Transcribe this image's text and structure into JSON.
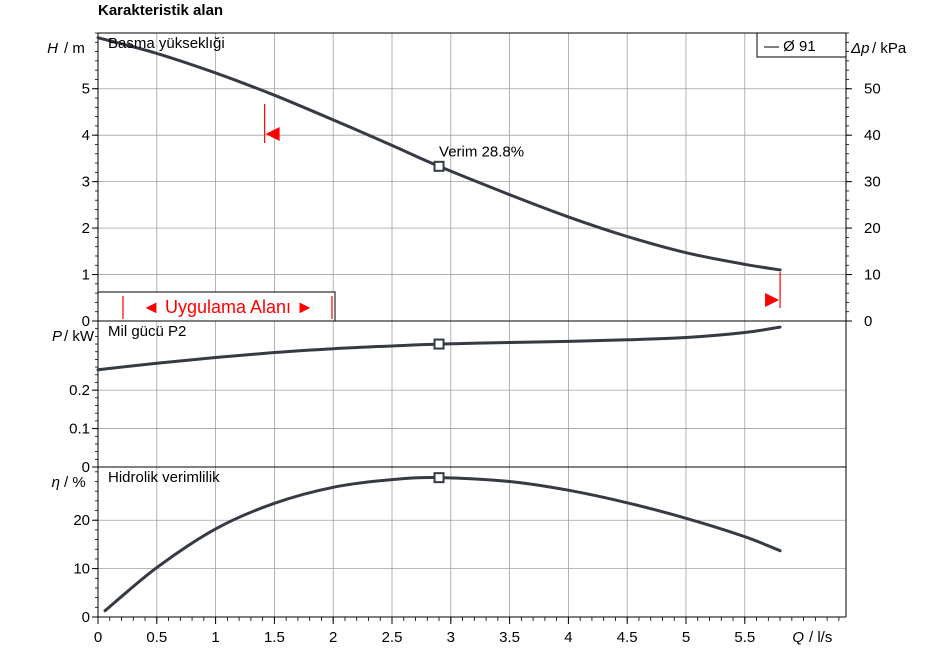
{
  "title": "Karakteristik alan",
  "colors": {
    "curve": "#353a44",
    "grid": "#a0a0a0",
    "range_marker": "#ff0000",
    "background": "#ffffff"
  },
  "legend": {
    "text": "— Ø 91",
    "position": "top-right"
  },
  "range_label": "◄ Uygulama Alanı ►",
  "x_axis": {
    "label_symbol": "Q",
    "label_unit": "/ l/s",
    "ticks": [
      "0",
      "0.5",
      "1",
      "1.5",
      "2",
      "2.5",
      "3",
      "3.5",
      "4",
      "4.5",
      "5",
      "5.5"
    ],
    "range": [
      0,
      6.3
    ]
  },
  "chart_data": [
    {
      "type": "line",
      "panel": "head",
      "title": "Basma yükseklıği",
      "ylabel_symbol": "H",
      "ylabel_unit": "/ m",
      "ylim": [
        0,
        6.2
      ],
      "yticks": [
        "0",
        "1",
        "2",
        "3",
        "4",
        "5"
      ],
      "y2label_symbol": "Δp",
      "y2label_unit": "/ kPa",
      "y2lim": [
        0,
        62
      ],
      "y2ticks": [
        "0",
        "10",
        "20",
        "30",
        "40",
        "50"
      ],
      "grid": true,
      "x": [
        0,
        0.5,
        1,
        1.5,
        2,
        2.5,
        2.9,
        3.5,
        4,
        4.5,
        5,
        5.5,
        5.8
      ],
      "values": [
        6.1,
        5.76,
        5.34,
        4.86,
        4.33,
        3.78,
        3.33,
        2.72,
        2.24,
        1.82,
        1.47,
        1.22,
        1.1
      ],
      "marker": {
        "x": 2.9,
        "y": 3.33
      },
      "annotation": "Verim  28.8%",
      "operating_range": {
        "x_min": 1.4,
        "x_max": 5.8
      }
    },
    {
      "type": "line",
      "panel": "power",
      "title": "Mil gücü P2",
      "ylabel_symbol": "P",
      "ylabel_unit": "/ kW",
      "ylim": [
        0,
        0.38
      ],
      "yticks": [
        "0",
        "0.1",
        "0.2"
      ],
      "grid": true,
      "x": [
        0,
        0.5,
        1,
        1.5,
        2,
        2.5,
        2.9,
        3.5,
        4,
        4.5,
        5,
        5.5,
        5.8
      ],
      "values": [
        0.253,
        0.27,
        0.285,
        0.298,
        0.308,
        0.315,
        0.32,
        0.324,
        0.327,
        0.331,
        0.337,
        0.35,
        0.364
      ],
      "marker": {
        "x": 2.9,
        "y": 0.32
      }
    },
    {
      "type": "line",
      "panel": "efficiency",
      "title": "Hidrolik verimlilik",
      "ylabel_symbol": "η",
      "ylabel_unit": "/ %",
      "ylim": [
        0,
        31
      ],
      "yticks": [
        "0",
        "10",
        "20"
      ],
      "grid": true,
      "x": [
        0.06,
        0.5,
        1,
        1.5,
        2,
        2.5,
        2.9,
        3.5,
        4,
        4.5,
        5,
        5.5,
        5.8
      ],
      "values": [
        1.3,
        10.2,
        18.2,
        23.5,
        26.8,
        28.4,
        28.8,
        28.0,
        26.2,
        23.6,
        20.4,
        16.6,
        13.7
      ],
      "marker": {
        "x": 2.9,
        "y": 28.8
      }
    }
  ]
}
